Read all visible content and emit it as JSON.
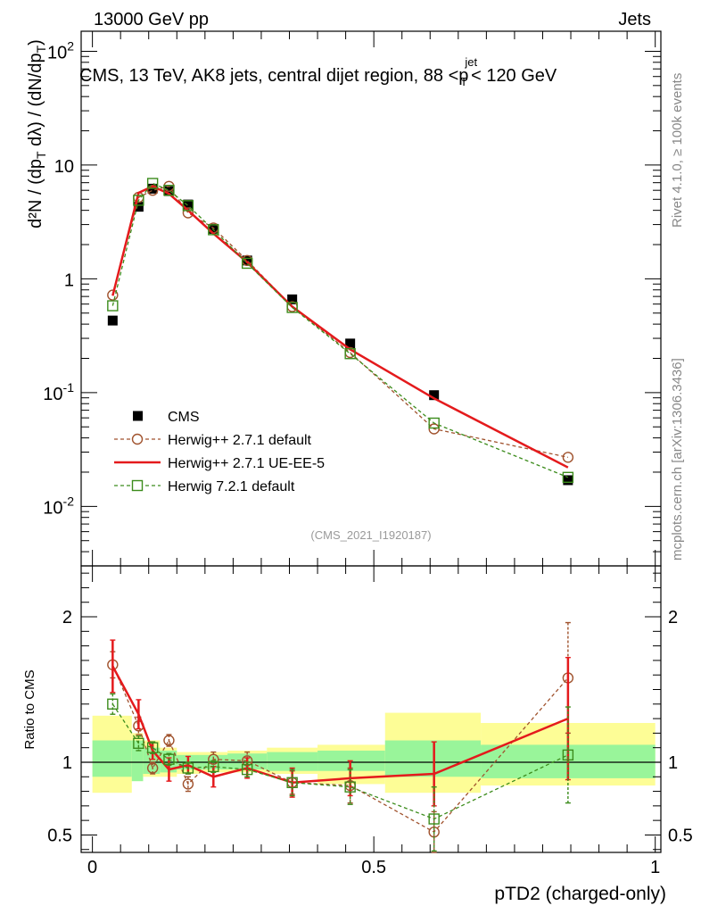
{
  "header": {
    "left": "13000 GeV pp",
    "right": "Jets"
  },
  "side_labels": {
    "rivet": "Rivet 4.1.0, ≥ 100k events",
    "mcplots": "mcplots.cern.ch [arXiv:1306.3436]"
  },
  "colors": {
    "data": "#000000",
    "herwigpp_default": "#a0522d",
    "herwigpp_ueee5": "#e41a1c",
    "herwig721": "#3c8c1c",
    "band_inner": "#99f59a",
    "band_outer": "#fdfd96"
  },
  "chart_data": [
    {
      "type": "line",
      "panel": "main",
      "title": "CMS, 13 TeV, AK8 jets, central dijet region, 88 <p_T^{jet}< 120 GeV",
      "watermark": "(CMS_2021_I1920187)",
      "ylabel": "1/(dN/dp_T) d²N/(dp_T dλ)",
      "yscale": "log",
      "xlim": [
        -0.02,
        1.01
      ],
      "ylim": [
        0.003,
        150
      ],
      "y_tick_labels": [
        "10^{-2}",
        "10^{-1}",
        "1",
        "10",
        "10^{2}"
      ],
      "legend": [
        "CMS",
        "Herwig++ 2.7.1 default",
        "Herwig++ 2.7.1 UE-EE-5",
        "Herwig 7.2.1 default"
      ],
      "legend_position": "bottom-left",
      "x": [
        0.036,
        0.082,
        0.107,
        0.136,
        0.17,
        0.215,
        0.275,
        0.355,
        0.458,
        0.607,
        0.845
      ],
      "series": [
        {
          "name": "CMS",
          "style": "square-marker",
          "values": [
            0.43,
            4.3,
            6.2,
            5.9,
            4.5,
            2.75,
            1.45,
            0.66,
            0.27,
            0.095,
            0.017
          ]
        },
        {
          "name": "Herwig++ 2.7.1 default",
          "style": "dashed-circle",
          "values": [
            0.72,
            5.2,
            6.0,
            6.5,
            3.8,
            2.8,
            1.45,
            0.57,
            0.225,
            0.048,
            0.027
          ]
        },
        {
          "name": "Herwig++ 2.7.1 UE-EE-5",
          "style": "solid-line",
          "values": [
            0.71,
            5.7,
            6.5,
            5.6,
            4.0,
            2.5,
            1.4,
            0.57,
            0.24,
            0.089,
            0.022
          ]
        },
        {
          "name": "Herwig 7.2.1 default",
          "style": "dashed-square",
          "values": [
            0.58,
            4.9,
            6.9,
            6.0,
            4.4,
            2.7,
            1.37,
            0.56,
            0.22,
            0.054,
            0.018
          ]
        }
      ]
    },
    {
      "type": "line",
      "panel": "ratio",
      "xlabel": "pTD2 (charged-only)",
      "ylabel": "Ratio to CMS",
      "xlim": [
        -0.02,
        1.01
      ],
      "ylim": [
        0.38,
        2.35
      ],
      "x_tick_labels": [
        "0",
        "0.5",
        "1"
      ],
      "y_tick_labels": [
        "0.5",
        "1",
        "2"
      ],
      "x": [
        0.036,
        0.082,
        0.107,
        0.136,
        0.17,
        0.215,
        0.275,
        0.355,
        0.458,
        0.607,
        0.845
      ],
      "bands": {
        "edges": [
          0,
          0.07,
          0.09,
          0.12,
          0.15,
          0.19,
          0.24,
          0.31,
          0.4,
          0.52,
          0.69,
          1.0
        ],
        "inner_low": [
          0.9,
          0.87,
          0.92,
          0.93,
          0.95,
          0.95,
          0.95,
          0.94,
          0.94,
          0.9,
          0.89
        ],
        "inner_high": [
          1.15,
          1.15,
          1.1,
          1.08,
          1.05,
          1.05,
          1.06,
          1.07,
          1.08,
          1.15,
          1.12
        ],
        "outer_low": [
          0.79,
          0.87,
          0.9,
          0.9,
          0.92,
          0.93,
          0.93,
          0.92,
          0.85,
          0.79,
          0.84
        ],
        "outer_high": [
          1.32,
          1.2,
          1.15,
          1.1,
          1.07,
          1.07,
          1.08,
          1.1,
          1.12,
          1.34,
          1.27
        ]
      },
      "series": [
        {
          "name": "Herwig++ 2.7.1 default",
          "values": [
            1.67,
            1.25,
            0.96,
            1.15,
            0.85,
            1.02,
            1.01,
            0.86,
            0.84,
            0.52,
            1.58
          ],
          "errors": [
            0.09,
            0.06,
            0.04,
            0.04,
            0.05,
            0.05,
            0.06,
            0.08,
            0.12,
            0.14,
            0.38
          ]
        },
        {
          "name": "Herwig++ 2.7.1 UE-EE-5",
          "values": [
            1.66,
            1.33,
            1.08,
            0.95,
            0.98,
            0.9,
            0.96,
            0.86,
            0.89,
            0.92,
            1.3
          ],
          "errors": [
            0.18,
            0.1,
            0.06,
            0.08,
            0.06,
            0.07,
            0.07,
            0.1,
            0.12,
            0.22,
            0.42
          ]
        },
        {
          "name": "Herwig 7.2.1 default",
          "values": [
            1.4,
            1.13,
            1.1,
            1.02,
            0.96,
            0.97,
            0.95,
            0.86,
            0.83,
            0.61,
            1.05
          ],
          "errors": [
            0.07,
            0.05,
            0.04,
            0.04,
            0.04,
            0.04,
            0.05,
            0.09,
            0.12,
            0.22,
            0.33
          ]
        }
      ]
    }
  ]
}
